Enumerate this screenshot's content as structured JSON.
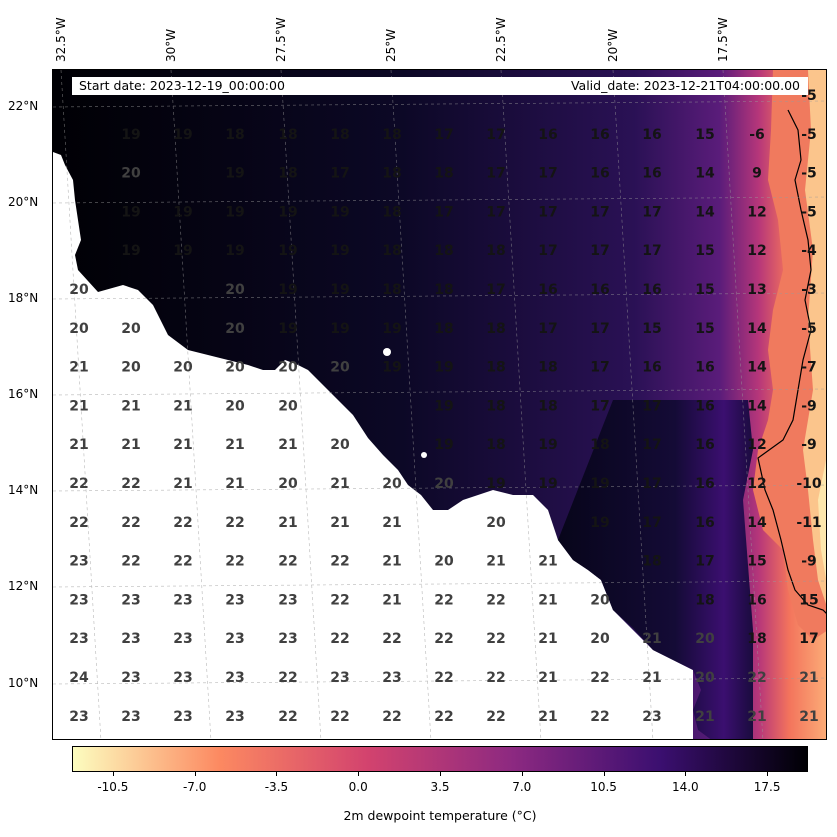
{
  "info": {
    "start_date": "Start date: 2023-12-19_00:00:00",
    "valid_date": "Valid_date: 2023-12-21T04:00:00.00"
  },
  "lon_labels": [
    "32.5°W",
    "30°W",
    "27.5°W",
    "25°W",
    "22.5°W",
    "20°W",
    "17.5°W"
  ],
  "lat_labels": [
    "22°N",
    "20°N",
    "18°N",
    "16°N",
    "14°N",
    "12°N",
    "10°N"
  ],
  "colorbar": {
    "title": "2m dewpoint temperature (°C)",
    "ticks": [
      "-10.5",
      "-7.0",
      "-3.5",
      "0.0",
      "3.5",
      "7.0",
      "10.5",
      "14.0",
      "17.5"
    ],
    "range": [
      -12.25,
      19.25
    ],
    "colormap": "magma_r",
    "colors": [
      "#fcfdbf",
      "#fc8961",
      "#d3436e",
      "#8c2981",
      "#3b0f70",
      "#000004"
    ]
  },
  "grid_values": [
    [
      "",
      "",
      "",
      "",
      "",
      "",
      "",
      "",
      "",
      "",
      "",
      "",
      "",
      "",
      "-5"
    ],
    [
      "",
      "19",
      "19",
      "18",
      "18",
      "18",
      "18",
      "17",
      "17",
      "16",
      "16",
      "16",
      "15",
      "-6",
      "-5"
    ],
    [
      "",
      "20",
      "",
      "19",
      "18",
      "17",
      "18",
      "18",
      "17",
      "17",
      "16",
      "16",
      "14",
      "9",
      "-5"
    ],
    [
      "",
      "19",
      "19",
      "19",
      "19",
      "19",
      "18",
      "17",
      "17",
      "17",
      "17",
      "17",
      "14",
      "12",
      "-5"
    ],
    [
      "",
      "19",
      "19",
      "19",
      "19",
      "19",
      "18",
      "18",
      "18",
      "17",
      "17",
      "17",
      "15",
      "12",
      "-4"
    ],
    [
      "20",
      "",
      "",
      "20",
      "19",
      "19",
      "18",
      "18",
      "17",
      "16",
      "16",
      "16",
      "15",
      "13",
      "-3"
    ],
    [
      "20",
      "20",
      "",
      "20",
      "19",
      "19",
      "19",
      "18",
      "18",
      "17",
      "17",
      "15",
      "15",
      "14",
      "-5"
    ],
    [
      "21",
      "20",
      "20",
      "20",
      "20",
      "20",
      "19",
      "19",
      "18",
      "18",
      "17",
      "16",
      "16",
      "14",
      "-7"
    ],
    [
      "21",
      "21",
      "21",
      "20",
      "20",
      "",
      "",
      "19",
      "18",
      "18",
      "17",
      "17",
      "16",
      "14",
      "-9"
    ],
    [
      "21",
      "21",
      "21",
      "21",
      "21",
      "20",
      "",
      "19",
      "18",
      "19",
      "18",
      "17",
      "16",
      "12",
      "-9"
    ],
    [
      "22",
      "22",
      "21",
      "21",
      "20",
      "21",
      "20",
      "20",
      "19",
      "19",
      "19",
      "17",
      "16",
      "12",
      "-10"
    ],
    [
      "22",
      "22",
      "22",
      "22",
      "21",
      "21",
      "21",
      "",
      "20",
      "",
      "19",
      "17",
      "16",
      "14",
      "-11"
    ],
    [
      "23",
      "22",
      "22",
      "22",
      "22",
      "22",
      "21",
      "20",
      "21",
      "21",
      "",
      "18",
      "17",
      "15",
      "-9"
    ],
    [
      "23",
      "23",
      "23",
      "23",
      "23",
      "22",
      "21",
      "22",
      "22",
      "21",
      "20",
      "",
      "18",
      "16",
      "15"
    ],
    [
      "23",
      "23",
      "23",
      "23",
      "23",
      "22",
      "22",
      "22",
      "22",
      "21",
      "20",
      "21",
      "20",
      "18",
      "17"
    ],
    [
      "24",
      "23",
      "23",
      "23",
      "22",
      "23",
      "23",
      "22",
      "22",
      "21",
      "22",
      "21",
      "20",
      "22",
      "21"
    ],
    [
      "23",
      "23",
      "23",
      "23",
      "22",
      "22",
      "22",
      "22",
      "22",
      "21",
      "22",
      "23",
      "21",
      "21",
      "21"
    ]
  ]
}
